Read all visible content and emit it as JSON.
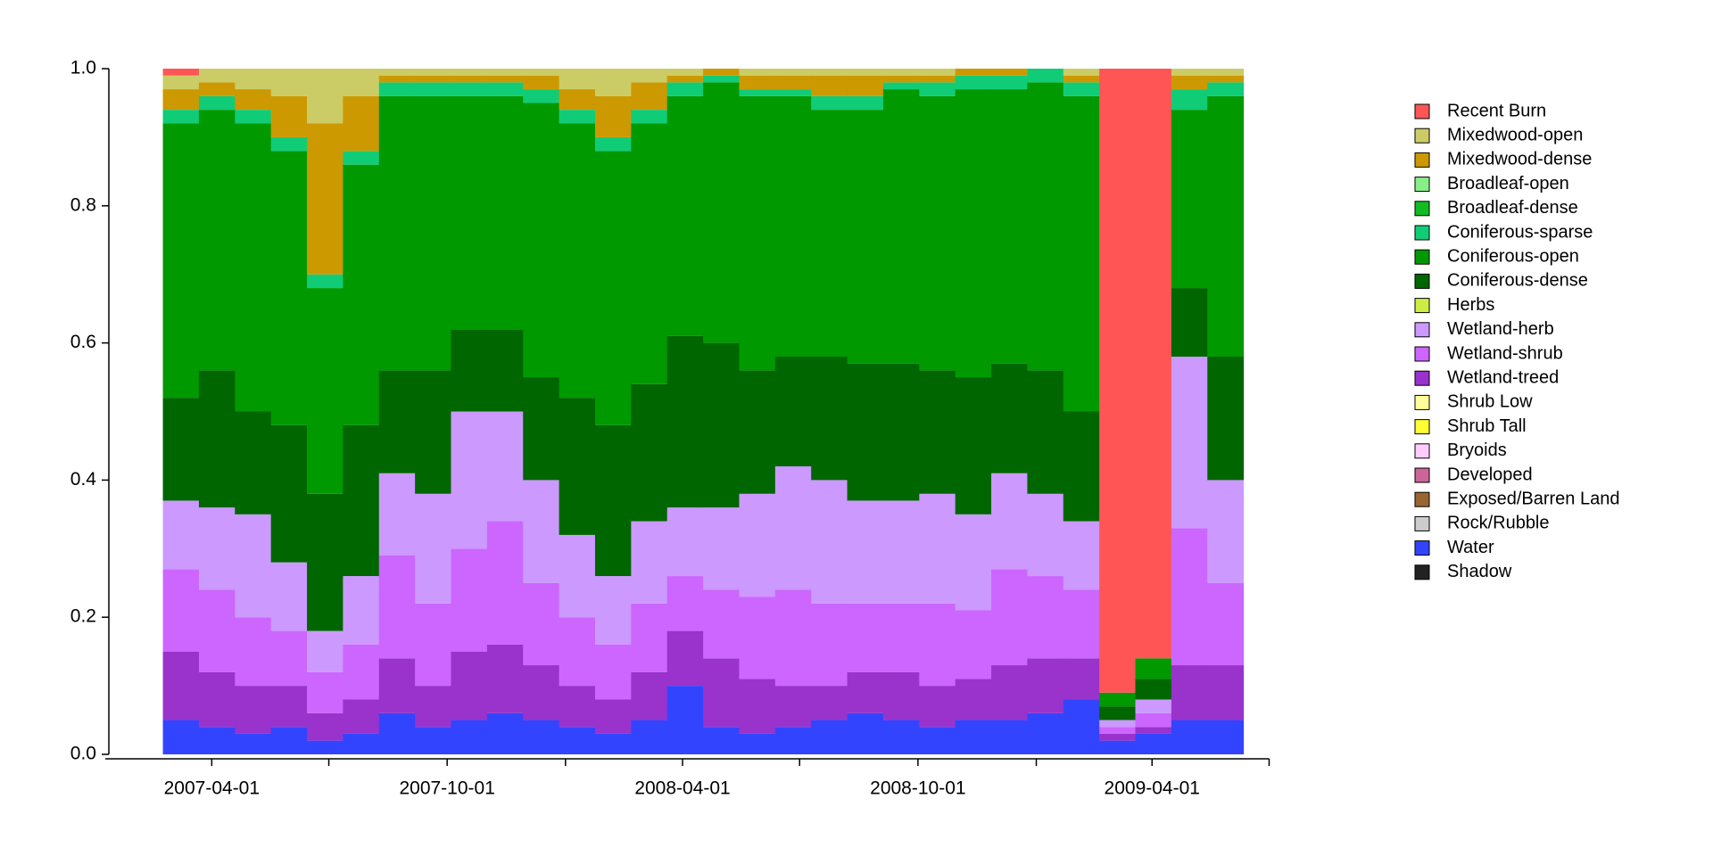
{
  "chart_data": {
    "type": "stacked-bar",
    "x": [
      "2007-02-22",
      "2007-03-22",
      "2007-04-19",
      "2007-05-17",
      "2007-06-14",
      "2007-07-12",
      "2007-08-09",
      "2007-09-06",
      "2007-10-04",
      "2007-11-01",
      "2007-11-29",
      "2007-12-27",
      "2008-01-24",
      "2008-02-21",
      "2008-03-20",
      "2008-04-17",
      "2008-05-15",
      "2008-06-12",
      "2008-07-10",
      "2008-08-07",
      "2008-09-04",
      "2008-10-02",
      "2008-10-30",
      "2008-11-27",
      "2008-12-25",
      "2009-01-22",
      "2009-02-19",
      "2009-03-19",
      "2009-04-16",
      "2009-05-14"
    ],
    "xlim": [
      "2007-01-11",
      "2009-07-09"
    ],
    "xticks": [
      "2007-04-01",
      "2007-10-01",
      "2008-04-01",
      "2008-10-01",
      "2009-04-01"
    ],
    "xminor": [
      "2007-07-01",
      "2008-01-01",
      "2008-07-01",
      "2009-01-01",
      "2009-07-01"
    ],
    "ylim": [
      0,
      1
    ],
    "yticks": [
      {
        "value": 0,
        "label": "0.0"
      },
      {
        "value": 0.2,
        "label": "0.2"
      },
      {
        "value": 0.4,
        "label": "0.4"
      },
      {
        "value": 0.6,
        "label": "0.6"
      },
      {
        "value": 0.8,
        "label": "0.8"
      },
      {
        "value": 1,
        "label": "1.0"
      }
    ],
    "grid": false,
    "legend": "right",
    "series": [
      {
        "name": "Recent Burn",
        "color": "#ff5555",
        "values": [
          0.01,
          0,
          0,
          0,
          0,
          0,
          0,
          0,
          0,
          0,
          0,
          0,
          0,
          0,
          0,
          0,
          0,
          0,
          0,
          0,
          0,
          0,
          0,
          0,
          0,
          0,
          0.91,
          0.86,
          0,
          0
        ]
      },
      {
        "name": "Mixedwood-open",
        "color": "#cccc66",
        "values": [
          0.02,
          0.02,
          0.03,
          0.04,
          0.08,
          0.04,
          0.01,
          0.01,
          0.01,
          0.01,
          0.01,
          0.03,
          0.04,
          0.02,
          0.01,
          0,
          0.01,
          0.01,
          0.01,
          0.01,
          0.01,
          0.01,
          0,
          0,
          0,
          0.01,
          0,
          0,
          0.01,
          0.01
        ]
      },
      {
        "name": "Mixedwood-dense",
        "color": "#cc9900",
        "values": [
          0.03,
          0.02,
          0.03,
          0.06,
          0.22,
          0.08,
          0.01,
          0.01,
          0.01,
          0.01,
          0.02,
          0.03,
          0.06,
          0.04,
          0.01,
          0.01,
          0.02,
          0.02,
          0.03,
          0.03,
          0.01,
          0.01,
          0.01,
          0.01,
          0,
          0.01,
          0,
          0,
          0.02,
          0.01
        ]
      },
      {
        "name": "Broadleaf-open",
        "color": "#88ee88",
        "values": [
          0,
          0,
          0,
          0,
          0,
          0,
          0,
          0,
          0,
          0,
          0,
          0,
          0,
          0,
          0,
          0,
          0,
          0,
          0,
          0,
          0,
          0,
          0,
          0,
          0,
          0,
          0,
          0,
          0,
          0
        ]
      },
      {
        "name": "Broadleaf-dense",
        "color": "#11bb22",
        "values": [
          0,
          0,
          0,
          0,
          0,
          0,
          0,
          0,
          0,
          0,
          0,
          0,
          0,
          0,
          0,
          0,
          0,
          0,
          0,
          0,
          0,
          0,
          0,
          0,
          0,
          0,
          0,
          0,
          0,
          0
        ]
      },
      {
        "name": "Coniferous-sparse",
        "color": "#11cc77",
        "values": [
          0.02,
          0.02,
          0.02,
          0.02,
          0.02,
          0.02,
          0.02,
          0.02,
          0.02,
          0.02,
          0.02,
          0.02,
          0.02,
          0.02,
          0.02,
          0.01,
          0.01,
          0.01,
          0.02,
          0.02,
          0.01,
          0.02,
          0.02,
          0.02,
          0.02,
          0.02,
          0,
          0,
          0.03,
          0.02
        ]
      },
      {
        "name": "Coniferous-open",
        "color": "#009900",
        "values": [
          0.4,
          0.38,
          0.42,
          0.4,
          0.3,
          0.38,
          0.4,
          0.4,
          0.34,
          0.34,
          0.4,
          0.4,
          0.4,
          0.38,
          0.35,
          0.38,
          0.4,
          0.38,
          0.36,
          0.37,
          0.4,
          0.4,
          0.42,
          0.4,
          0.42,
          0.46,
          0.02,
          0.03,
          0.26,
          0.38
        ]
      },
      {
        "name": "Coniferous-dense",
        "color": "#006600",
        "values": [
          0.15,
          0.2,
          0.15,
          0.2,
          0.2,
          0.22,
          0.15,
          0.18,
          0.12,
          0.12,
          0.15,
          0.2,
          0.22,
          0.2,
          0.25,
          0.24,
          0.18,
          0.16,
          0.18,
          0.2,
          0.2,
          0.18,
          0.2,
          0.16,
          0.18,
          0.16,
          0.02,
          0.03,
          0.1,
          0.18
        ]
      },
      {
        "name": "Herbs",
        "color": "#ccee44",
        "values": [
          0,
          0,
          0,
          0,
          0,
          0,
          0,
          0,
          0,
          0,
          0,
          0,
          0,
          0,
          0,
          0,
          0,
          0,
          0,
          0,
          0,
          0,
          0,
          0,
          0,
          0,
          0,
          0,
          0,
          0
        ]
      },
      {
        "name": "Wetland-herb",
        "color": "#cc99ff",
        "values": [
          0.1,
          0.12,
          0.15,
          0.1,
          0.06,
          0.1,
          0.12,
          0.16,
          0.2,
          0.16,
          0.15,
          0.12,
          0.1,
          0.12,
          0.1,
          0.12,
          0.15,
          0.18,
          0.18,
          0.15,
          0.15,
          0.16,
          0.14,
          0.14,
          0.12,
          0.1,
          0.01,
          0.02,
          0.25,
          0.15
        ]
      },
      {
        "name": "Wetland-shrub",
        "color": "#cc66ff",
        "values": [
          0.12,
          0.12,
          0.1,
          0.08,
          0.06,
          0.08,
          0.15,
          0.12,
          0.15,
          0.18,
          0.12,
          0.1,
          0.08,
          0.1,
          0.08,
          0.1,
          0.12,
          0.14,
          0.12,
          0.1,
          0.1,
          0.12,
          0.1,
          0.14,
          0.12,
          0.1,
          0.01,
          0.02,
          0.2,
          0.12
        ]
      },
      {
        "name": "Wetland-treed",
        "color": "#9933cc",
        "values": [
          0.1,
          0.08,
          0.07,
          0.06,
          0.04,
          0.05,
          0.08,
          0.06,
          0.1,
          0.1,
          0.08,
          0.06,
          0.05,
          0.07,
          0.08,
          0.1,
          0.08,
          0.06,
          0.05,
          0.06,
          0.07,
          0.06,
          0.06,
          0.08,
          0.08,
          0.06,
          0.01,
          0.01,
          0.08,
          0.08
        ]
      },
      {
        "name": "Shrub Low",
        "color": "#ffff99",
        "values": [
          0,
          0,
          0,
          0,
          0,
          0,
          0,
          0,
          0,
          0,
          0,
          0,
          0,
          0,
          0,
          0,
          0,
          0,
          0,
          0,
          0,
          0,
          0,
          0,
          0,
          0,
          0,
          0,
          0,
          0
        ]
      },
      {
        "name": "Shrub Tall",
        "color": "#ffff33",
        "values": [
          0,
          0,
          0,
          0,
          0,
          0,
          0,
          0,
          0,
          0,
          0,
          0,
          0,
          0,
          0,
          0,
          0,
          0,
          0,
          0,
          0,
          0,
          0,
          0,
          0,
          0,
          0,
          0,
          0,
          0
        ]
      },
      {
        "name": "Bryoids",
        "color": "#ffccff",
        "values": [
          0,
          0,
          0,
          0,
          0,
          0,
          0,
          0,
          0,
          0,
          0,
          0,
          0,
          0,
          0,
          0,
          0,
          0,
          0,
          0,
          0,
          0,
          0,
          0,
          0,
          0,
          0,
          0,
          0,
          0
        ]
      },
      {
        "name": "Developed",
        "color": "#cc6699",
        "values": [
          0,
          0,
          0,
          0,
          0,
          0,
          0,
          0,
          0,
          0,
          0,
          0,
          0,
          0,
          0,
          0,
          0,
          0,
          0,
          0,
          0,
          0,
          0,
          0,
          0,
          0,
          0,
          0,
          0,
          0
        ]
      },
      {
        "name": "Exposed/Barren Land",
        "color": "#996633",
        "values": [
          0,
          0,
          0,
          0,
          0,
          0,
          0,
          0,
          0,
          0,
          0,
          0,
          0,
          0,
          0,
          0,
          0,
          0,
          0,
          0,
          0,
          0,
          0,
          0,
          0,
          0,
          0,
          0,
          0,
          0
        ]
      },
      {
        "name": "Rock/Rubble",
        "color": "#cccccc",
        "values": [
          0,
          0,
          0,
          0,
          0,
          0,
          0,
          0,
          0,
          0,
          0,
          0,
          0,
          0,
          0,
          0,
          0,
          0,
          0,
          0,
          0,
          0,
          0,
          0,
          0,
          0,
          0,
          0,
          0,
          0
        ]
      },
      {
        "name": "Water",
        "color": "#3344ff",
        "values": [
          0.05,
          0.04,
          0.03,
          0.04,
          0.02,
          0.03,
          0.06,
          0.04,
          0.05,
          0.06,
          0.05,
          0.04,
          0.03,
          0.05,
          0.1,
          0.04,
          0.03,
          0.04,
          0.05,
          0.06,
          0.05,
          0.04,
          0.05,
          0.05,
          0.06,
          0.08,
          0.02,
          0.03,
          0.05,
          0.05
        ]
      },
      {
        "name": "Shadow",
        "color": "#222222",
        "values": [
          0,
          0,
          0,
          0,
          0,
          0,
          0,
          0,
          0,
          0,
          0,
          0,
          0,
          0,
          0,
          0,
          0,
          0,
          0,
          0,
          0,
          0,
          0,
          0,
          0,
          0,
          0,
          0,
          0,
          0
        ]
      }
    ]
  }
}
